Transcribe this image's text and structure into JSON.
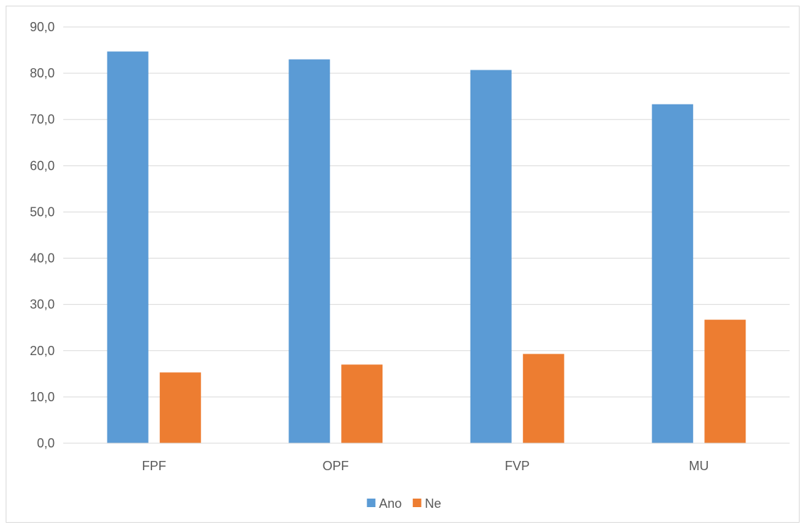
{
  "chart_data": {
    "type": "bar",
    "title": "",
    "xlabel": "",
    "ylabel": "",
    "categories": [
      "FPF",
      "OPF",
      "FVP",
      "MU"
    ],
    "series": [
      {
        "name": "Ano",
        "color": "#5B9BD5",
        "values": [
          84.7,
          83.0,
          80.7,
          73.3
        ]
      },
      {
        "name": "Ne",
        "color": "#ED7D31",
        "values": [
          15.3,
          17.0,
          19.3,
          26.7
        ]
      }
    ],
    "ylim": [
      0,
      90
    ],
    "yticks": [
      "0,0",
      "10,0",
      "20,0",
      "30,0",
      "40,0",
      "50,0",
      "60,0",
      "70,0",
      "80,0",
      "90,0"
    ],
    "grid": true,
    "legend_position": "bottom"
  }
}
